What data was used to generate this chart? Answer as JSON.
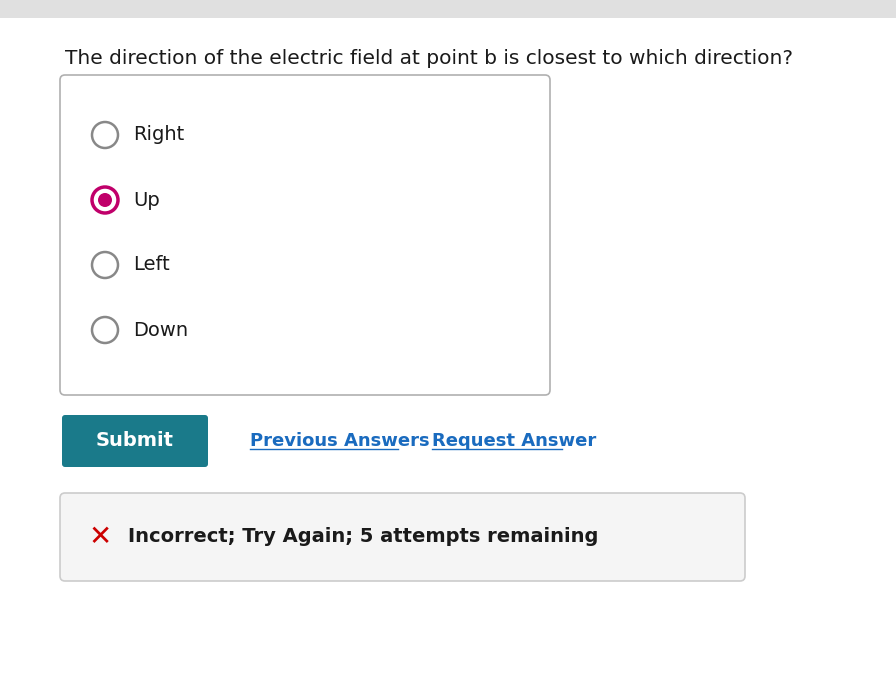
{
  "background_color": "#f0f0f0",
  "page_bg": "#ffffff",
  "question_text": "The direction of the electric field at point b is closest to which direction?",
  "question_fontsize": 14.5,
  "question_color": "#1a1a1a",
  "options": [
    "Right",
    "Up",
    "Left",
    "Down"
  ],
  "selected_option": 1,
  "radio_unselected_color": "#888888",
  "radio_selected_outer": "#c0006a",
  "radio_selected_inner": "#c0006a",
  "option_box_border": "#b0b0b0",
  "option_box_bg": "#ffffff",
  "submit_bg": "#1a7a8a",
  "submit_text": "Submit",
  "submit_text_color": "#ffffff",
  "submit_fontsize": 14,
  "link_color": "#1a6bbf",
  "prev_answers_text": "Previous Answers",
  "request_answer_text": "Request Answer",
  "link_fontsize": 13,
  "feedback_bg": "#f5f5f5",
  "feedback_border": "#cccccc",
  "incorrect_text": "Incorrect; Try Again; 5 attempts remaining",
  "incorrect_fontsize": 14,
  "x_color": "#cc0000",
  "option_fontsize": 14,
  "option_color": "#1a1a1a",
  "top_bar_color": "#e0e0e0",
  "top_bar_height": 18
}
